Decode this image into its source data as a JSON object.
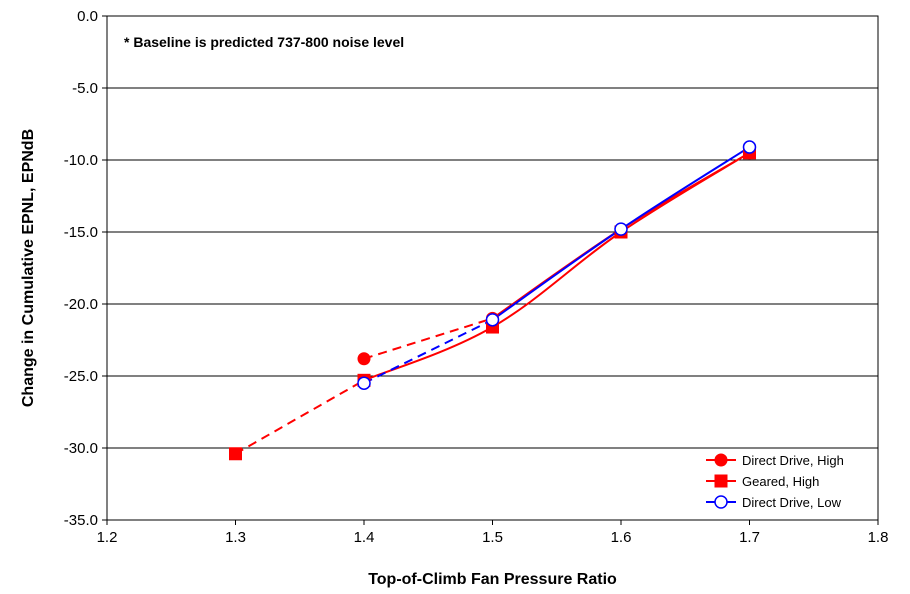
{
  "chart_data": {
    "type": "line",
    "xlabel": "Top-of-Climb Fan Pressure Ratio",
    "ylabel": "Change in Cumulative EPNL, EPNdB",
    "annotation": "* Baseline is predicted 737-800 noise level",
    "xlim": [
      1.2,
      1.8
    ],
    "ylim": [
      -35,
      0
    ],
    "x_ticks": [
      "1.2",
      "1.3",
      "1.4",
      "1.5",
      "1.6",
      "1.7",
      "1.8"
    ],
    "y_ticks": [
      "0.0",
      "-5.0",
      "-10.0",
      "-15.0",
      "-20.0",
      "-25.0",
      "-30.0",
      "-35.0"
    ],
    "grid": "horizontal",
    "legend_position": "bottom-right",
    "series": [
      {
        "name": "Direct Drive, High",
        "color": "#ff0000",
        "marker": "filled-circle",
        "x": [
          1.4,
          1.5,
          1.6,
          1.7
        ],
        "y": [
          -23.8,
          -21.0,
          -14.8,
          -9.5
        ],
        "dashed_until_index": 1
      },
      {
        "name": "Geared, High",
        "color": "#ff0000",
        "marker": "filled-square",
        "x": [
          1.3,
          1.4,
          1.5,
          1.6,
          1.7
        ],
        "y": [
          -30.4,
          -25.3,
          -21.6,
          -15.0,
          -9.5
        ],
        "dashed_until_index": 1
      },
      {
        "name": "Direct Drive, Low",
        "color": "#0000ff",
        "marker": "open-circle",
        "x": [
          1.4,
          1.5,
          1.6,
          1.7
        ],
        "y": [
          -25.5,
          -21.1,
          -14.8,
          -9.1
        ],
        "dashed_until_index": 1
      }
    ]
  }
}
